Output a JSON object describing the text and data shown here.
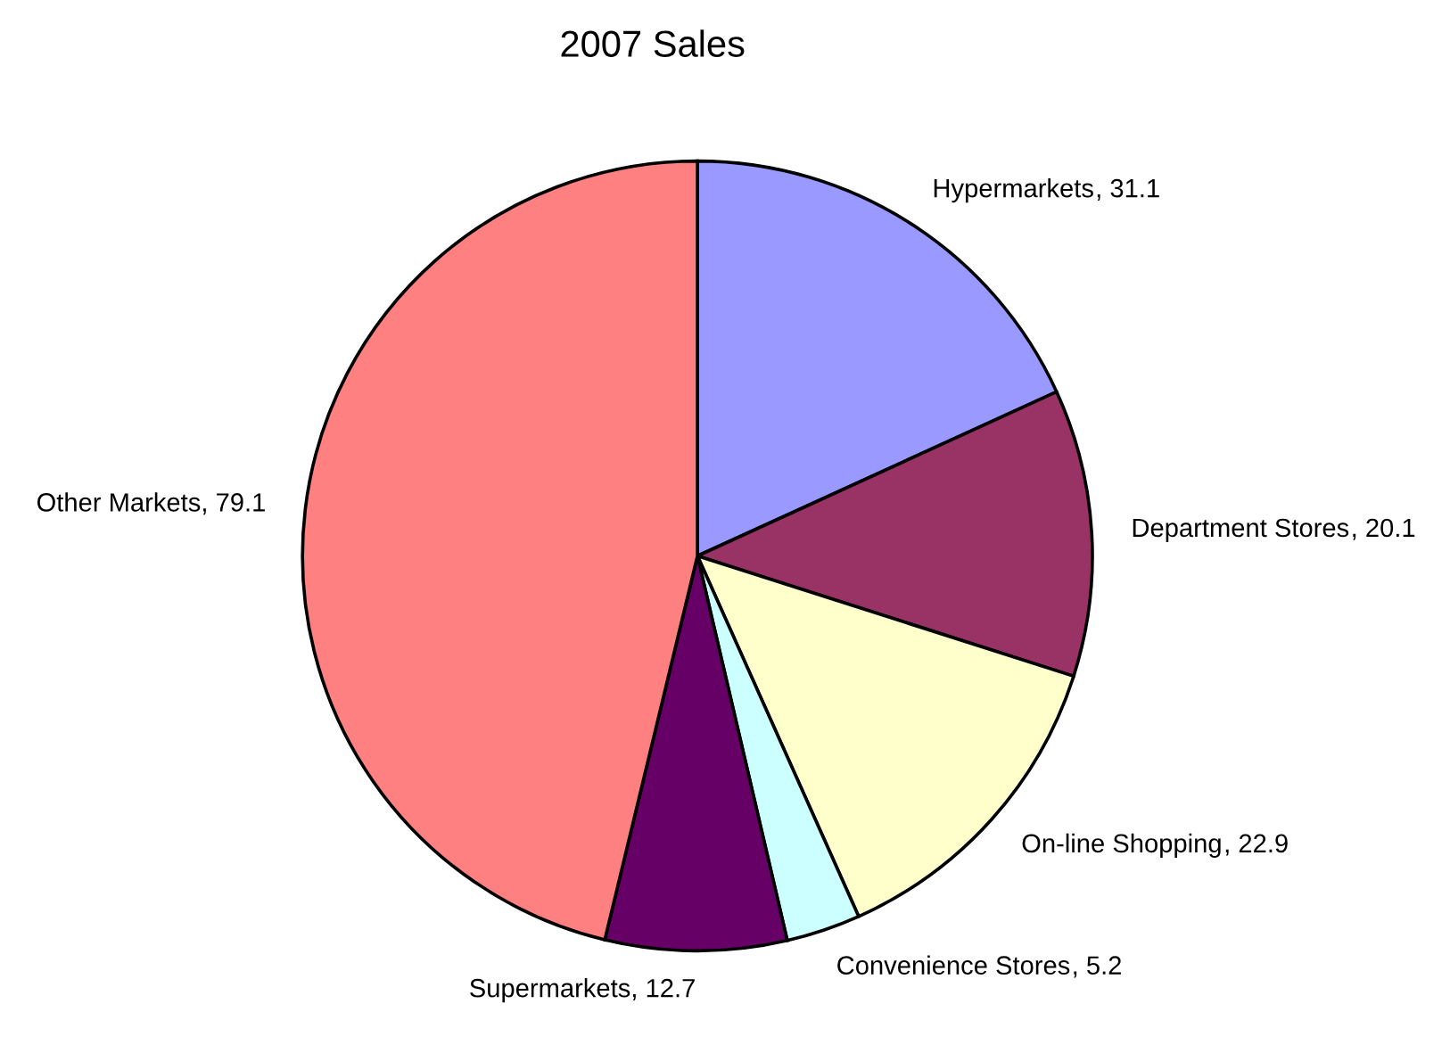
{
  "chart_data": {
    "type": "pie",
    "title": "2007 Sales",
    "categories": [
      "Hypermarkets",
      "Department Stores",
      "On-line Shopping",
      "Convenience Stores",
      "Supermarkets",
      "Other Markets"
    ],
    "values": [
      31.1,
      20.1,
      22.9,
      5.2,
      12.7,
      79.1
    ],
    "value_labels": [
      ", 31.1",
      ", 20.1",
      ", 22.9",
      ", 5.2",
      ", 12.7",
      ", 79.1"
    ],
    "colors": [
      "#9999ff",
      "#993366",
      "#ffffcc",
      "#ccffff",
      "#660066",
      "#ff8080"
    ]
  }
}
